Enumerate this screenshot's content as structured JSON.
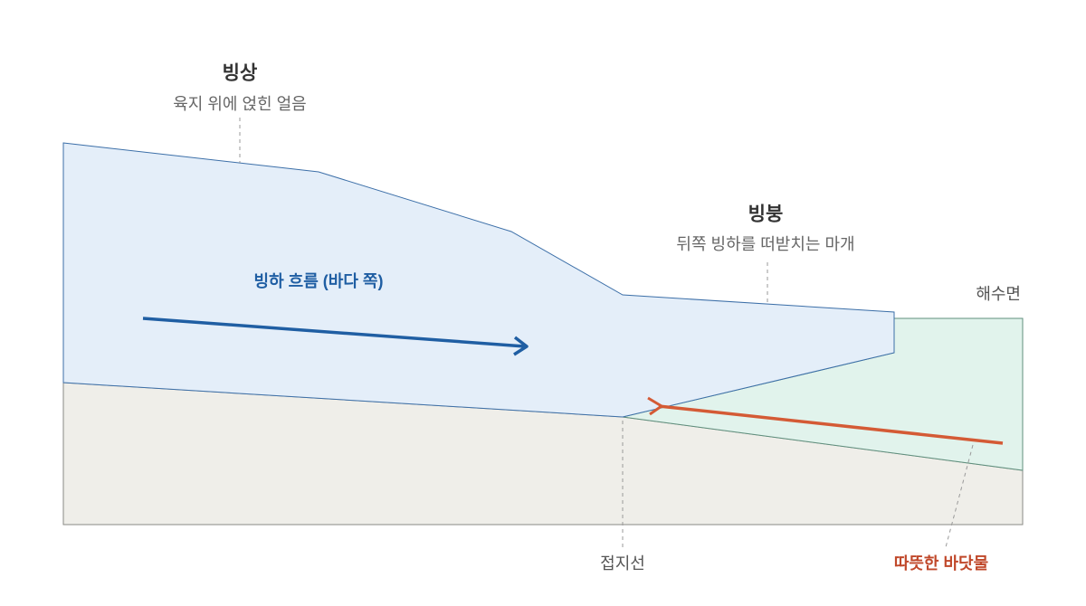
{
  "ice_sheet": {
    "title": "빙상",
    "subtitle": "육지 위에 얹힌 얼음"
  },
  "ice_shelf": {
    "title": "빙붕",
    "subtitle": "뒤쪽 빙하를 떠받치는 마개"
  },
  "flow_label": "빙하 흐름 (바다 쪽)",
  "sea_level_label": "해수면",
  "grounding_line_label": "접지선",
  "warm_water_label": "따뜻한 바닷물"
}
